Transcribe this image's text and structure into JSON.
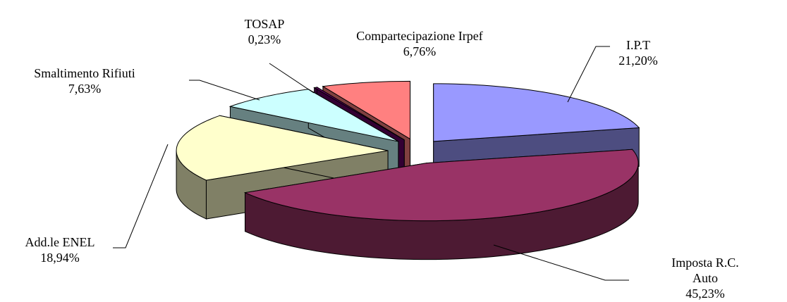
{
  "chart_data": {
    "type": "pie",
    "categories": [
      "I.P.T",
      "Imposta R.C. Auto",
      "Add.le ENEL",
      "Smaltimento Rifiuti",
      "TOSAP",
      "Compartecipazione Irpef"
    ],
    "values": [
      21.2,
      45.23,
      18.94,
      7.63,
      0.23,
      6.76
    ],
    "value_labels": [
      "21,20%",
      "45,23%",
      "18,94%",
      "7,63%",
      "0,23%",
      "6,76%"
    ],
    "colors": [
      "#9999ff",
      "#993366",
      "#ffffcc",
      "#ccffff",
      "#660066",
      "#ff8080"
    ]
  }
}
